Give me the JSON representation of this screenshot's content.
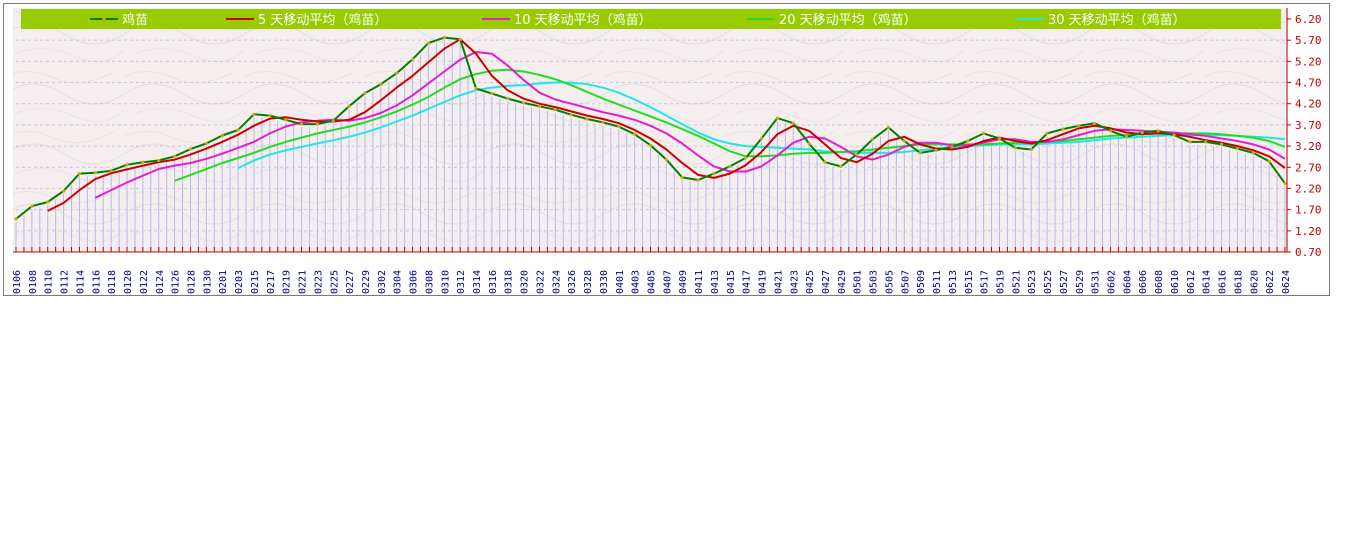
{
  "chart_data": {
    "type": "line",
    "title": "",
    "xlabel": "",
    "ylabel": "",
    "ylim": [
      0.7,
      6.2
    ],
    "yticks": [
      "6.20",
      "5.70",
      "5.20",
      "4.70",
      "4.20",
      "3.70",
      "3.20",
      "2.70",
      "2.20",
      "1.70",
      "1.20",
      "0.70"
    ],
    "grid": true,
    "legend_position": "top",
    "x": [
      "0106",
      "0108",
      "0110",
      "0112",
      "0114",
      "0116",
      "0118",
      "0120",
      "0122",
      "0124",
      "0126",
      "0128",
      "0130",
      "0201",
      "0203",
      "0215",
      "0217",
      "0219",
      "0221",
      "0223",
      "0225",
      "0227",
      "0229",
      "0302",
      "0304",
      "0306",
      "0308",
      "0310",
      "0312",
      "0314",
      "0316",
      "0318",
      "0320",
      "0322",
      "0324",
      "0326",
      "0328",
      "0330",
      "0401",
      "0403",
      "0405",
      "0407",
      "0409",
      "0411",
      "0413",
      "0415",
      "0417",
      "0419",
      "0421",
      "0423",
      "0425",
      "0427",
      "0429",
      "0501",
      "0503",
      "0505",
      "0507",
      "0509",
      "0511",
      "0513",
      "0515",
      "0517",
      "0519",
      "0521",
      "0523",
      "0525",
      "0527",
      "0529",
      "0531",
      "0602",
      "0604",
      "0606",
      "0608",
      "0610",
      "0612",
      "0614",
      "0616",
      "0618",
      "0620",
      "0622",
      "0624"
    ],
    "series": [
      {
        "name": "鸡苗",
        "color": "#008000",
        "values": [
          1.48,
          1.78,
          1.88,
          2.14,
          2.55,
          2.57,
          2.62,
          2.76,
          2.82,
          2.86,
          2.96,
          3.13,
          3.26,
          3.45,
          3.58,
          3.95,
          3.92,
          3.82,
          3.72,
          3.72,
          3.8,
          4.14,
          4.45,
          4.66,
          4.92,
          5.25,
          5.63,
          5.76,
          5.72,
          4.56,
          4.44,
          4.32,
          4.22,
          4.14,
          4.06,
          3.94,
          3.84,
          3.76,
          3.66,
          3.48,
          3.22,
          2.88,
          2.46,
          2.4,
          2.55,
          2.72,
          2.92,
          3.38,
          3.86,
          3.74,
          3.26,
          2.82,
          2.72,
          3.0,
          3.36,
          3.64,
          3.32,
          3.04,
          3.1,
          3.18,
          3.32,
          3.5,
          3.38,
          3.16,
          3.12,
          3.5,
          3.6,
          3.68,
          3.74,
          3.56,
          3.42,
          3.52,
          3.56,
          3.46,
          3.3,
          3.3,
          3.24,
          3.14,
          3.04,
          2.84,
          2.32
        ]
      },
      {
        "name": "5 天移动平均（鸡苗）",
        "color": "#cc0000",
        "values": [
          null,
          null,
          1.67,
          1.86,
          2.16,
          2.42,
          2.56,
          2.65,
          2.74,
          2.82,
          2.88,
          3.0,
          3.14,
          3.3,
          3.47,
          3.68,
          3.85,
          3.88,
          3.82,
          3.78,
          3.78,
          3.82,
          4.0,
          4.28,
          4.58,
          4.86,
          5.18,
          5.5,
          5.72,
          5.38,
          4.86,
          4.52,
          4.32,
          4.2,
          4.12,
          4.02,
          3.92,
          3.84,
          3.74,
          3.58,
          3.38,
          3.12,
          2.8,
          2.52,
          2.45,
          2.55,
          2.75,
          3.06,
          3.48,
          3.68,
          3.56,
          3.24,
          2.92,
          2.82,
          3.02,
          3.32,
          3.42,
          3.24,
          3.14,
          3.12,
          3.18,
          3.32,
          3.4,
          3.32,
          3.26,
          3.34,
          3.48,
          3.62,
          3.68,
          3.62,
          3.52,
          3.48,
          3.5,
          3.48,
          3.42,
          3.34,
          3.28,
          3.2,
          3.1,
          2.96,
          2.68
        ]
      },
      {
        "name": "10 天移动平均（鸡苗）",
        "color": "#e020d0",
        "values": [
          null,
          null,
          null,
          null,
          null,
          1.98,
          2.16,
          2.34,
          2.5,
          2.66,
          2.74,
          2.8,
          2.9,
          3.02,
          3.16,
          3.3,
          3.5,
          3.66,
          3.76,
          3.8,
          3.82,
          3.8,
          3.86,
          3.98,
          4.16,
          4.4,
          4.68,
          4.96,
          5.24,
          5.42,
          5.38,
          5.1,
          4.76,
          4.46,
          4.3,
          4.2,
          4.1,
          4.0,
          3.92,
          3.82,
          3.68,
          3.5,
          3.26,
          2.98,
          2.72,
          2.6,
          2.6,
          2.72,
          2.98,
          3.28,
          3.42,
          3.38,
          3.18,
          2.96,
          2.88,
          3.0,
          3.18,
          3.28,
          3.28,
          3.22,
          3.22,
          3.28,
          3.36,
          3.36,
          3.3,
          3.3,
          3.36,
          3.46,
          3.56,
          3.6,
          3.58,
          3.56,
          3.54,
          3.52,
          3.48,
          3.44,
          3.38,
          3.32,
          3.24,
          3.12,
          2.9
        ]
      },
      {
        "name": "20 天移动平均（鸡苗）",
        "color": "#22dd22",
        "values": [
          null,
          null,
          null,
          null,
          null,
          null,
          null,
          null,
          null,
          null,
          2.38,
          2.52,
          2.66,
          2.8,
          2.92,
          3.04,
          3.18,
          3.3,
          3.4,
          3.5,
          3.58,
          3.66,
          3.76,
          3.88,
          4.02,
          4.18,
          4.36,
          4.58,
          4.78,
          4.9,
          4.98,
          5.0,
          4.96,
          4.88,
          4.78,
          4.64,
          4.48,
          4.32,
          4.18,
          4.04,
          3.9,
          3.76,
          3.6,
          3.44,
          3.26,
          3.08,
          2.96,
          2.96,
          2.98,
          3.02,
          3.04,
          3.04,
          3.06,
          3.08,
          3.12,
          3.16,
          3.2,
          3.24,
          3.24,
          3.24,
          3.24,
          3.24,
          3.26,
          3.28,
          3.28,
          3.3,
          3.32,
          3.36,
          3.4,
          3.44,
          3.46,
          3.48,
          3.5,
          3.5,
          3.5,
          3.5,
          3.48,
          3.44,
          3.4,
          3.32,
          3.18
        ]
      },
      {
        "name": "30 天移动平均（鸡苗）",
        "color": "#22e6e6",
        "values": [
          null,
          null,
          null,
          null,
          null,
          null,
          null,
          null,
          null,
          null,
          null,
          null,
          null,
          null,
          2.68,
          2.86,
          3.0,
          3.1,
          3.18,
          3.26,
          3.34,
          3.42,
          3.52,
          3.64,
          3.78,
          3.92,
          4.08,
          4.24,
          4.4,
          4.52,
          4.58,
          4.62,
          4.64,
          4.68,
          4.7,
          4.7,
          4.66,
          4.58,
          4.46,
          4.3,
          4.12,
          3.92,
          3.72,
          3.52,
          3.36,
          3.26,
          3.2,
          3.18,
          3.16,
          3.14,
          3.12,
          3.08,
          3.06,
          3.04,
          3.04,
          3.04,
          3.06,
          3.1,
          3.14,
          3.18,
          3.2,
          3.22,
          3.24,
          3.24,
          3.24,
          3.26,
          3.28,
          3.3,
          3.34,
          3.38,
          3.4,
          3.42,
          3.44,
          3.46,
          3.46,
          3.46,
          3.46,
          3.44,
          3.42,
          3.4,
          3.36
        ]
      }
    ]
  }
}
